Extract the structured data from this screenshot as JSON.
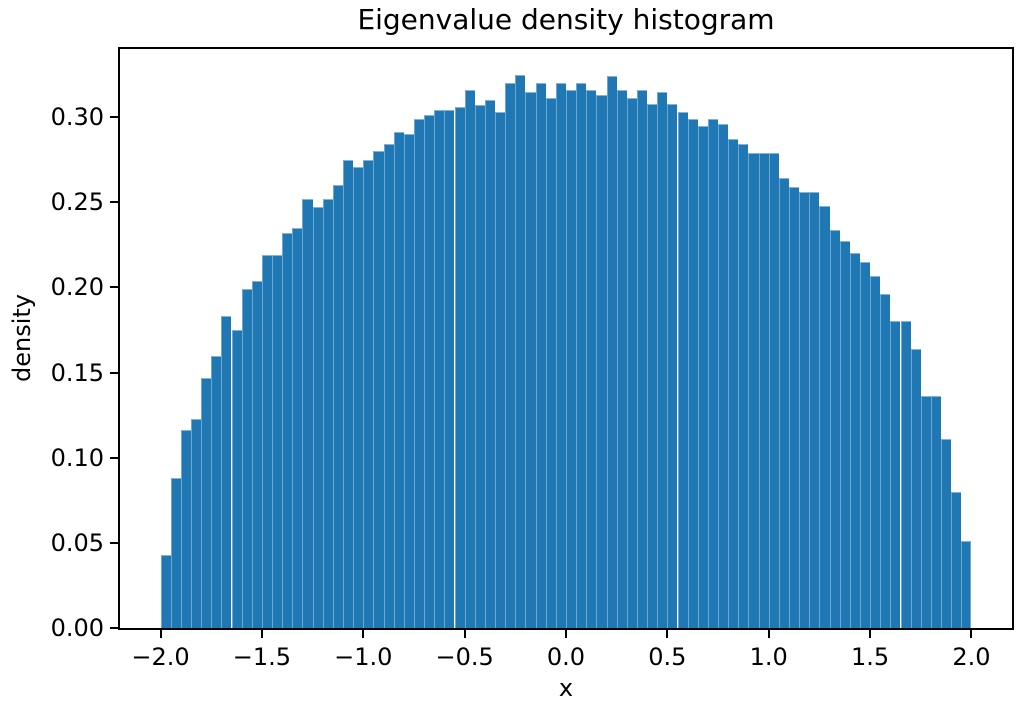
{
  "chart_data": {
    "type": "bar",
    "subtype": "histogram",
    "title": "Eigenvalue density histogram",
    "xlabel": "x",
    "ylabel": "density",
    "grid": false,
    "legend": null,
    "bar_color": "#1f77b4",
    "bar_edge_color": "rgba(255,255,255,0.35)",
    "xlim": [
      -2.2,
      2.2
    ],
    "ylim": [
      0,
      0.34
    ],
    "bin_start": -2.0,
    "bin_end": 2.0,
    "bin_width": 0.05,
    "n_bins": 80,
    "xticks": [
      -2.0,
      -1.5,
      -1.0,
      -0.5,
      0.0,
      0.5,
      1.0,
      1.5,
      2.0
    ],
    "xtick_labels": [
      "−2.0",
      "−1.5",
      "−1.0",
      "−0.5",
      "0.0",
      "0.5",
      "1.0",
      "1.5",
      "2.0"
    ],
    "yticks": [
      0.0,
      0.05,
      0.1,
      0.15,
      0.2,
      0.25,
      0.3
    ],
    "ytick_labels": [
      "0.00",
      "0.05",
      "0.10",
      "0.15",
      "0.20",
      "0.25",
      "0.30"
    ],
    "values": [
      0.043,
      0.088,
      0.116,
      0.123,
      0.147,
      0.16,
      0.183,
      0.175,
      0.199,
      0.204,
      0.219,
      0.219,
      0.232,
      0.235,
      0.252,
      0.247,
      0.252,
      0.26,
      0.275,
      0.271,
      0.275,
      0.28,
      0.284,
      0.291,
      0.29,
      0.299,
      0.301,
      0.304,
      0.304,
      0.306,
      0.316,
      0.307,
      0.31,
      0.303,
      0.32,
      0.325,
      0.315,
      0.32,
      0.311,
      0.32,
      0.316,
      0.32,
      0.316,
      0.313,
      0.324,
      0.316,
      0.311,
      0.316,
      0.308,
      0.315,
      0.308,
      0.303,
      0.299,
      0.295,
      0.299,
      0.296,
      0.287,
      0.284,
      0.279,
      0.279,
      0.279,
      0.264,
      0.259,
      0.256,
      0.256,
      0.248,
      0.234,
      0.227,
      0.22,
      0.215,
      0.207,
      0.196,
      0.18,
      0.18,
      0.164,
      0.136,
      0.136,
      0.111,
      0.08,
      0.051
    ]
  }
}
